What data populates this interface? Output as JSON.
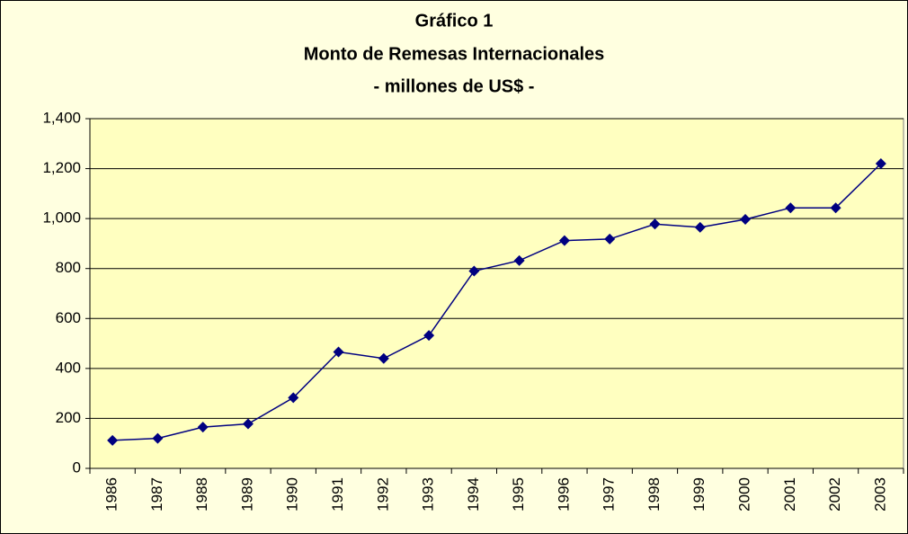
{
  "chart_data": {
    "type": "line",
    "title": [
      "Gráfico 1",
      "Monto de Remesas Internacionales",
      "- millones de US$ -"
    ],
    "categories": [
      "1986",
      "1987",
      "1988",
      "1989",
      "1990",
      "1991",
      "1992",
      "1993",
      "1994",
      "1995",
      "1996",
      "1997",
      "1998",
      "1999",
      "2000",
      "2001",
      "2002",
      "2003"
    ],
    "values": [
      112,
      120,
      165,
      178,
      283,
      466,
      440,
      532,
      790,
      832,
      912,
      918,
      978,
      965,
      997,
      1043,
      1043,
      1220
    ],
    "color": "#000080",
    "ylim": [
      0,
      1400
    ],
    "yticks": [
      0,
      200,
      400,
      600,
      800,
      {
        "value": 1000,
        "label": "1,000"
      },
      {
        "value": 1200,
        "label": "1,200"
      },
      {
        "value": 1400,
        "label": "1,400"
      }
    ],
    "grid": true
  }
}
